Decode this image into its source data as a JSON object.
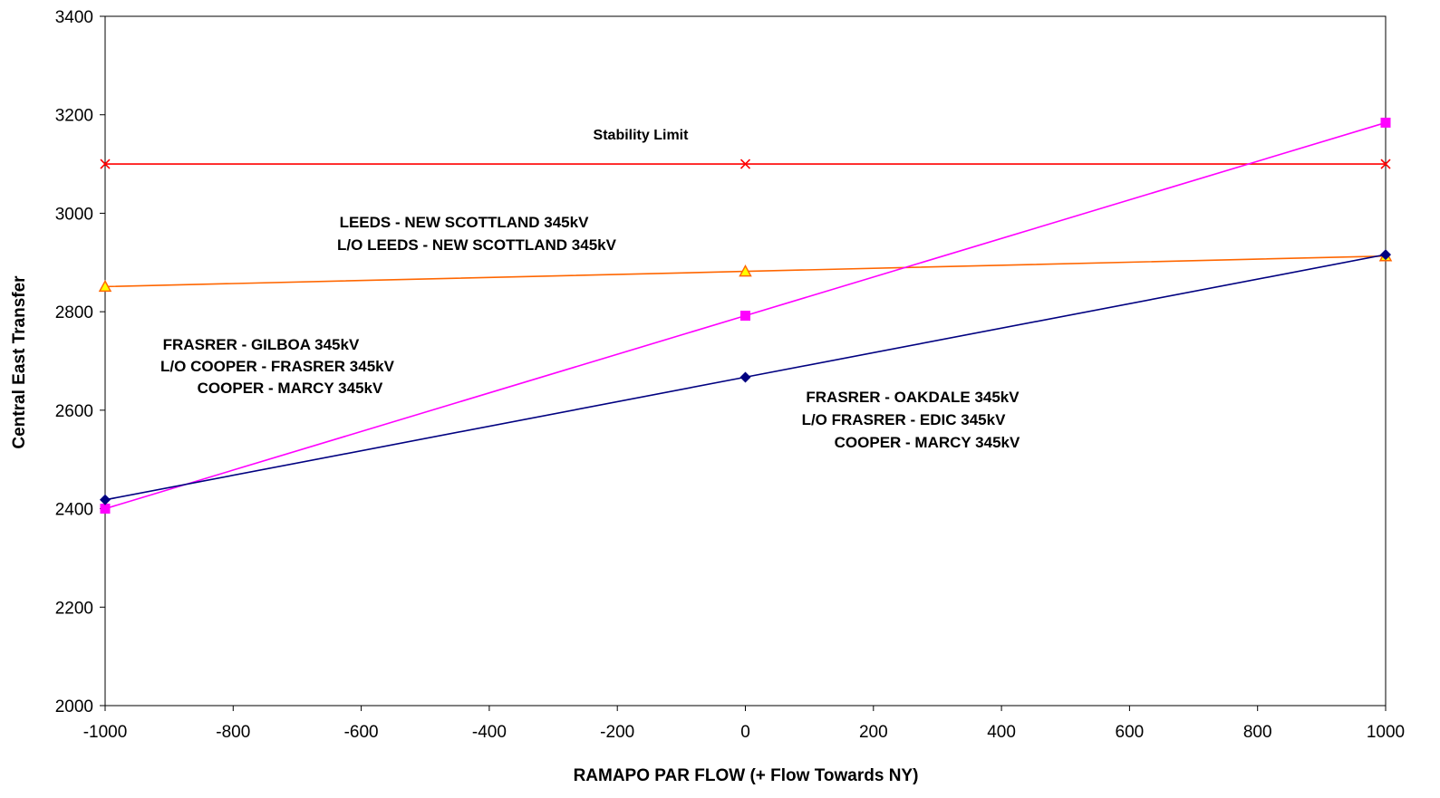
{
  "chart_data": {
    "type": "line",
    "title": "",
    "xlabel": "RAMAPO PAR FLOW (+ Flow Towards  NY)",
    "ylabel": "Central East Transfer",
    "xlim": [
      -1000,
      1000
    ],
    "ylim": [
      2000,
      3400
    ],
    "x_ticks": [
      -1000,
      -800,
      -600,
      -400,
      -200,
      0,
      200,
      400,
      600,
      800,
      1000
    ],
    "y_ticks": [
      2000,
      2200,
      2400,
      2600,
      2800,
      3000,
      3200,
      3400
    ],
    "grid": false,
    "legend": "none",
    "series": [
      {
        "color": "#ff0000",
        "marker": "x",
        "x": [
          -1000,
          0,
          1000
        ],
        "y": [
          3100,
          3100,
          3100
        ]
      },
      {
        "color": "#ff6600",
        "marker": "triangle",
        "marker_fill": "#ffff00",
        "x": [
          -1000,
          0,
          1000
        ],
        "y": [
          2851,
          2882,
          2913
        ]
      },
      {
        "color": "#ff00ff",
        "marker": "square",
        "x": [
          -1000,
          0,
          1000
        ],
        "y": [
          2400,
          2792,
          3184
        ]
      },
      {
        "color": "#000080",
        "marker": "diamond",
        "x": [
          -1000,
          0,
          1000
        ],
        "y": [
          2418,
          2667,
          2916
        ]
      }
    ],
    "annotations": [
      {
        "text": "Stability Limit"
      },
      {
        "text": "LEEDS - NEW SCOTTLAND 345kV"
      },
      {
        "text": "L/O LEEDS - NEW SCOTTLAND 345kV"
      },
      {
        "text": "FRASRER - GILBOA 345kV"
      },
      {
        "text": "L/O COOPER - FRASRER 345kV"
      },
      {
        "text": "COOPER - MARCY 345kV"
      },
      {
        "text": "FRASRER - OAKDALE 345kV"
      },
      {
        "text": "L/O FRASRER - EDIC 345kV"
      },
      {
        "text": "COOPER - MARCY 345kV"
      }
    ]
  }
}
